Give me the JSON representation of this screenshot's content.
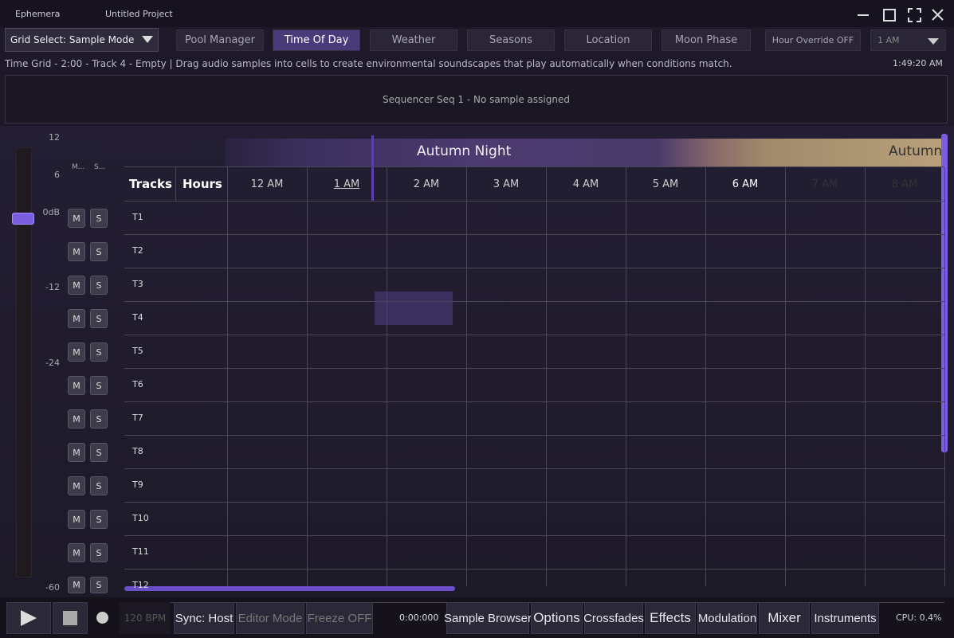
{
  "window": {
    "app": "Ephemera",
    "project": "Untitled Project"
  },
  "toolbar": {
    "grid_select": "Grid Select: Sample Mode",
    "tabs": [
      {
        "label": "Pool Manager"
      },
      {
        "label": "Time Of Day",
        "active": true
      },
      {
        "label": "Weather"
      },
      {
        "label": "Seasons"
      },
      {
        "label": "Location"
      },
      {
        "label": "Moon Phase"
      }
    ],
    "hour_override": "Hour Override OFF",
    "hour_select": "1 AM"
  },
  "status": {
    "text": "Time Grid - 2:00 - Track 4 - Empty | Drag audio samples into cells to create environmental soundscapes that play automatically when conditions match.",
    "clock": "1:49:20 AM"
  },
  "sequencer": {
    "text": "Sequencer Seq 1 - No sample assigned"
  },
  "meter": {
    "scale": [
      "12",
      "6",
      "0dB",
      "-12",
      "-24",
      "-60"
    ],
    "mute_header": "M...",
    "solo_header": "S..."
  },
  "grid": {
    "seasons": [
      "Autumn Night",
      "Autumn"
    ],
    "corner": [
      "Tracks",
      "Hours"
    ],
    "hours": [
      "12 AM",
      "1 AM",
      "2 AM",
      "3 AM",
      "4 AM",
      "5 AM",
      "6 AM",
      "7 AM",
      "8 AM"
    ],
    "tracks": [
      "T1",
      "T2",
      "T3",
      "T4",
      "T5",
      "T6",
      "T7",
      "T8",
      "T9",
      "T10",
      "T11",
      "T12"
    ],
    "mute": "M",
    "solo": "S"
  },
  "transport": {
    "bpm": "120 BPM",
    "sync": "Sync: Host",
    "editor": "Editor Mode",
    "freeze": "Freeze OFF",
    "time": "0:00:000",
    "buttons": [
      "Sample Browser",
      "Options",
      "Crossfades",
      "Effects",
      "Modulation",
      "Mixer",
      "Instruments"
    ],
    "cpu": "CPU: 0.4%"
  }
}
